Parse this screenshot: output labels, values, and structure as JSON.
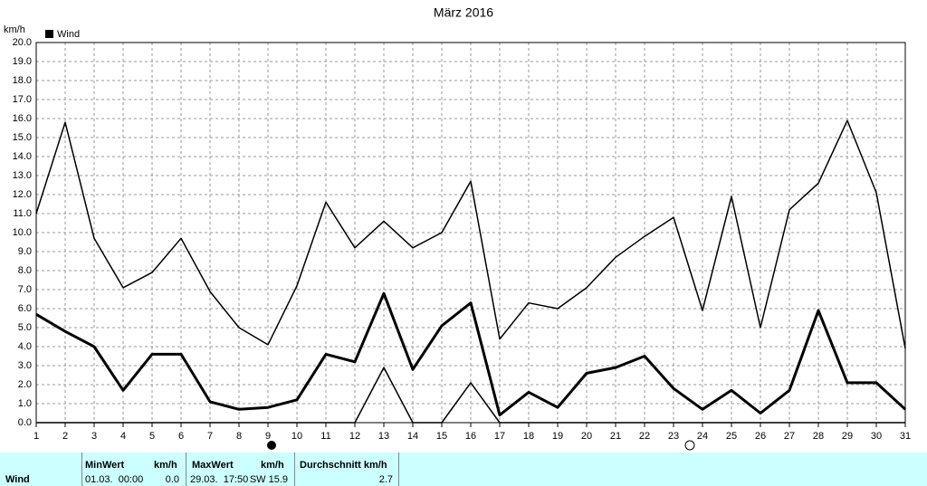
{
  "chart_data": {
    "type": "line",
    "title": "März 2016",
    "y_label": "km/h",
    "legend": "top-left",
    "grid": true,
    "x": [
      1,
      2,
      3,
      4,
      5,
      6,
      7,
      8,
      9,
      10,
      11,
      12,
      13,
      14,
      15,
      16,
      17,
      18,
      19,
      20,
      21,
      22,
      23,
      24,
      25,
      26,
      27,
      28,
      29,
      30,
      31
    ],
    "xlim": [
      1,
      31
    ],
    "xticks": [
      1,
      2,
      3,
      4,
      5,
      6,
      7,
      8,
      9,
      10,
      11,
      12,
      13,
      14,
      15,
      16,
      17,
      18,
      19,
      20,
      21,
      22,
      23,
      24,
      25,
      26,
      27,
      28,
      29,
      30,
      31
    ],
    "ylim": [
      0,
      20
    ],
    "yticks": [
      {
        "value": 0,
        "label": "0.0"
      },
      {
        "value": 1,
        "label": "1.0"
      },
      {
        "value": 2,
        "label": "2.0"
      },
      {
        "value": 3,
        "label": "3.0"
      },
      {
        "value": 4,
        "label": "4.0"
      },
      {
        "value": 5,
        "label": "5.0"
      },
      {
        "value": 6,
        "label": "6.0"
      },
      {
        "value": 7,
        "label": "7.0"
      },
      {
        "value": 8,
        "label": "8.0"
      },
      {
        "value": 9,
        "label": "9.0"
      },
      {
        "value": 10,
        "label": "10.0"
      },
      {
        "value": 11,
        "label": "11.0"
      },
      {
        "value": 12,
        "label": "12.0"
      },
      {
        "value": 13,
        "label": "13.0"
      },
      {
        "value": 14,
        "label": "14.0"
      },
      {
        "value": 15,
        "label": "15.0"
      },
      {
        "value": 16,
        "label": "16.0"
      },
      {
        "value": 17,
        "label": "17.0"
      },
      {
        "value": 18,
        "label": "18.0"
      },
      {
        "value": 19,
        "label": "19.0"
      },
      {
        "value": 20,
        "label": "20.0"
      }
    ],
    "series": [
      {
        "color": "#000000",
        "linewidth": 1.5,
        "values": [
          11.0,
          15.8,
          9.7,
          7.1,
          7.9,
          9.7,
          6.9,
          5.0,
          4.1,
          7.2,
          11.6,
          9.2,
          10.6,
          9.2,
          10.0,
          12.7,
          4.4,
          6.3,
          6.0,
          7.1,
          8.7,
          9.8,
          10.8,
          5.9,
          11.9,
          5.0,
          11.2,
          12.6,
          15.9,
          12.1,
          3.9
        ]
      },
      {
        "name": "Wind",
        "color": "#000000",
        "linewidth": 3,
        "values": [
          5.7,
          4.8,
          4.0,
          1.7,
          3.6,
          3.6,
          1.1,
          0.7,
          0.8,
          1.2,
          3.6,
          3.2,
          6.8,
          2.8,
          5.1,
          6.3,
          0.4,
          1.6,
          0.8,
          2.6,
          2.9,
          3.5,
          1.8,
          0.7,
          1.7,
          0.5,
          1.7,
          5.9,
          2.1,
          2.1,
          0.7
        ]
      },
      {
        "color": "#000000",
        "linewidth": 1.5,
        "values": [
          0,
          0,
          0,
          0,
          0,
          0,
          0,
          0,
          0,
          0,
          0,
          0,
          2.9,
          0,
          0,
          2.1,
          0,
          0,
          0,
          0,
          0,
          0,
          0,
          0,
          0,
          0,
          0,
          0,
          0,
          0,
          0
        ]
      }
    ]
  },
  "table": {
    "header": [
      "MinWert",
      "km/h",
      "MaxWert",
      "km/h",
      "Durchschnitt km/h"
    ],
    "row": {
      "label": "Wind",
      "min_time": "01.03.  00:00",
      "min": "0.0",
      "max_time": "29.03.  17:50",
      "max": "SW 15.9",
      "avg": "2.7"
    }
  }
}
